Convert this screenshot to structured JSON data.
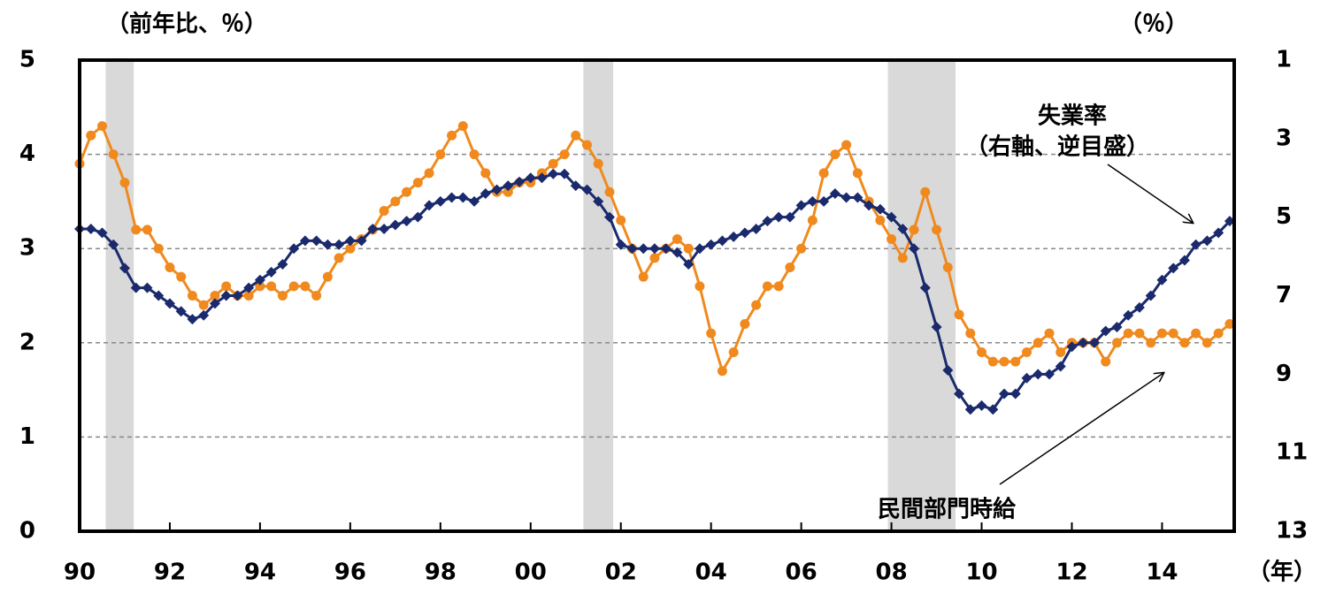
{
  "chart_data": {
    "type": "line",
    "y_label": "（前年比、％）",
    "y2_label": "（％）",
    "x_label": "（年）",
    "annotations": [
      "失業率",
      "（右軸、逆目盛）",
      "民間部門時給"
    ],
    "xlim": [
      1990,
      2015.6
    ],
    "xticks": [
      {
        "value": 1990,
        "label": "90"
      },
      {
        "value": 1992,
        "label": "92"
      },
      {
        "value": 1994,
        "label": "94"
      },
      {
        "value": 1996,
        "label": "96"
      },
      {
        "value": 1998,
        "label": "98"
      },
      {
        "value": 2000,
        "label": "00"
      },
      {
        "value": 2002,
        "label": "02"
      },
      {
        "value": 2004,
        "label": "04"
      },
      {
        "value": 2006,
        "label": "06"
      },
      {
        "value": 2008,
        "label": "08"
      },
      {
        "value": 2010,
        "label": "10"
      },
      {
        "value": 2012,
        "label": "12"
      },
      {
        "value": 2014,
        "label": "14"
      }
    ],
    "ylim": [
      0,
      5
    ],
    "yticks": [
      0,
      1,
      2,
      3,
      4,
      5
    ],
    "y2lim": [
      13,
      1
    ],
    "y2ticks": [
      1,
      3,
      5,
      7,
      9,
      11,
      13
    ],
    "grid": true,
    "recessions": [
      [
        1990.58,
        1991.2
      ],
      [
        2001.17,
        2001.83
      ],
      [
        2007.92,
        2009.42
      ]
    ],
    "x": [
      1990,
      1990.25,
      1990.5,
      1990.75,
      1991,
      1991.25,
      1991.5,
      1991.75,
      1992,
      1992.25,
      1992.5,
      1992.75,
      1993,
      1993.25,
      1993.5,
      1993.75,
      1994,
      1994.25,
      1994.5,
      1994.75,
      1995,
      1995.25,
      1995.5,
      1995.75,
      1996,
      1996.25,
      1996.5,
      1996.75,
      1997,
      1997.25,
      1997.5,
      1997.75,
      1998,
      1998.25,
      1998.5,
      1998.75,
      1999,
      1999.25,
      1999.5,
      1999.75,
      2000,
      2000.25,
      2000.5,
      2000.75,
      2001,
      2001.25,
      2001.5,
      2001.75,
      2002,
      2002.25,
      2002.5,
      2002.75,
      2003,
      2003.25,
      2003.5,
      2003.75,
      2004,
      2004.25,
      2004.5,
      2004.75,
      2005,
      2005.25,
      2005.5,
      2005.75,
      2006,
      2006.25,
      2006.5,
      2006.75,
      2007,
      2007.25,
      2007.5,
      2007.75,
      2008,
      2008.25,
      2008.5,
      2008.75,
      2009,
      2009.25,
      2009.5,
      2009.75,
      2010,
      2010.25,
      2010.5,
      2010.75,
      2011,
      2011.25,
      2011.5,
      2011.75,
      2012,
      2012.25,
      2012.5,
      2012.75,
      2013,
      2013.25,
      2013.5,
      2013.75,
      2014,
      2014.25,
      2014.5,
      2014.75,
      2015,
      2015.25,
      2015.5
    ],
    "series": [
      {
        "name": "民間部門時給",
        "color": "#f08a1e",
        "marker": "circle",
        "axis": "y",
        "values": [
          3.9,
          4.2,
          4.3,
          4.0,
          3.7,
          3.2,
          3.2,
          3.0,
          2.8,
          2.7,
          2.5,
          2.4,
          2.5,
          2.6,
          2.5,
          2.5,
          2.6,
          2.6,
          2.5,
          2.6,
          2.6,
          2.5,
          2.7,
          2.9,
          3.0,
          3.1,
          3.2,
          3.4,
          3.5,
          3.6,
          3.7,
          3.8,
          4.0,
          4.2,
          4.3,
          4.0,
          3.8,
          3.6,
          3.6,
          3.7,
          3.7,
          3.8,
          3.9,
          4.0,
          4.2,
          4.1,
          3.9,
          3.6,
          3.3,
          3.0,
          2.7,
          2.9,
          3.0,
          3.1,
          3.0,
          2.6,
          2.1,
          1.7,
          1.9,
          2.2,
          2.4,
          2.6,
          2.6,
          2.8,
          3.0,
          3.3,
          3.8,
          4.0,
          4.1,
          3.8,
          3.5,
          3.3,
          3.1,
          2.9,
          3.2,
          3.6,
          3.2,
          2.8,
          2.3,
          2.1,
          1.9,
          1.8,
          1.8,
          1.8,
          1.9,
          2.0,
          2.1,
          1.9,
          2.0,
          2.0,
          2.0,
          1.8,
          2.0,
          2.1,
          2.1,
          2.0,
          2.1,
          2.1,
          2.0,
          2.1,
          2.0,
          2.1,
          2.2
        ]
      },
      {
        "name": "失業率",
        "color": "#1a2a6c",
        "marker": "diamond",
        "axis": "y2",
        "values": [
          5.3,
          5.3,
          5.4,
          5.7,
          6.3,
          6.8,
          6.8,
          7.0,
          7.2,
          7.4,
          7.6,
          7.5,
          7.2,
          7.0,
          7.0,
          6.8,
          6.6,
          6.4,
          6.2,
          5.8,
          5.6,
          5.6,
          5.7,
          5.7,
          5.6,
          5.6,
          5.3,
          5.3,
          5.2,
          5.1,
          5.0,
          4.7,
          4.6,
          4.5,
          4.5,
          4.6,
          4.4,
          4.3,
          4.2,
          4.1,
          4.0,
          4.0,
          3.9,
          3.9,
          4.2,
          4.3,
          4.6,
          5.0,
          5.7,
          5.8,
          5.8,
          5.8,
          5.8,
          5.9,
          6.2,
          5.8,
          5.7,
          5.6,
          5.5,
          5.4,
          5.3,
          5.1,
          5.0,
          5.0,
          4.7,
          4.6,
          4.6,
          4.4,
          4.5,
          4.5,
          4.7,
          4.8,
          5.0,
          5.3,
          5.8,
          6.8,
          7.8,
          8.9,
          9.5,
          9.9,
          9.8,
          9.9,
          9.5,
          9.5,
          9.1,
          9.0,
          9.0,
          8.8,
          8.3,
          8.2,
          8.2,
          7.9,
          7.8,
          7.5,
          7.3,
          7.0,
          6.6,
          6.3,
          6.1,
          5.7,
          5.6,
          5.4,
          5.1
        ]
      }
    ]
  }
}
